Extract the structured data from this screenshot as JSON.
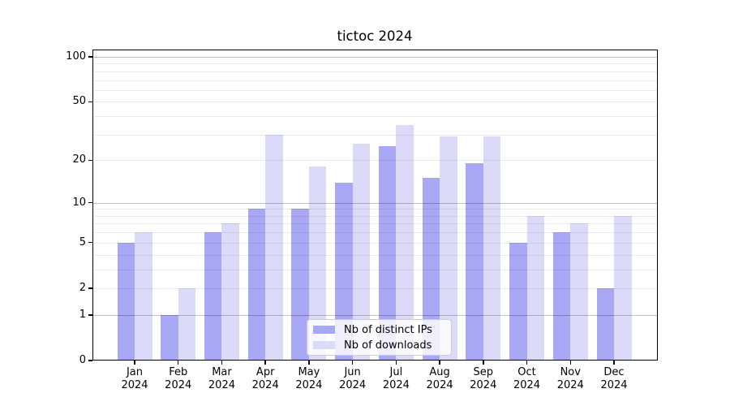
{
  "chart_data": {
    "type": "bar",
    "title": "tictoc 2024",
    "categories": [
      "Jan 2024",
      "Feb 2024",
      "Mar 2024",
      "Apr 2024",
      "May 2024",
      "Jun 2024",
      "Jul 2024",
      "Aug 2024",
      "Sep 2024",
      "Oct 2024",
      "Nov 2024",
      "Dec 2024"
    ],
    "series": [
      {
        "name": "Nb of distinct IPs",
        "color": "#a8a8f5",
        "values": [
          5,
          1,
          6,
          9,
          9,
          14,
          25,
          15,
          19,
          5,
          6,
          2
        ]
      },
      {
        "name": "Nb of downloads",
        "color": "#dbdbf9",
        "values": [
          6,
          2,
          7,
          30,
          18,
          26,
          35,
          29,
          29,
          8,
          7,
          8
        ]
      }
    ],
    "xlabel": "",
    "ylabel": "",
    "y_axis": {
      "scale": "log1p",
      "range": [
        0,
        100
      ],
      "tick_labels": [
        "0",
        "1",
        "2",
        "5",
        "10",
        "20",
        "50",
        "100"
      ],
      "tick_values": [
        0,
        1,
        2,
        5,
        10,
        20,
        50,
        100
      ],
      "major_grid_values": [
        1,
        10,
        100
      ],
      "minor_grid_values": [
        2,
        3,
        4,
        5,
        6,
        7,
        8,
        9,
        20,
        30,
        40,
        50,
        60,
        70,
        80,
        90
      ]
    },
    "grid": "horizontal",
    "legend": {
      "position": "bottom-center",
      "entries": [
        "Nb of distinct IPs",
        "Nb of downloads"
      ]
    },
    "background": "#ffffff"
  }
}
